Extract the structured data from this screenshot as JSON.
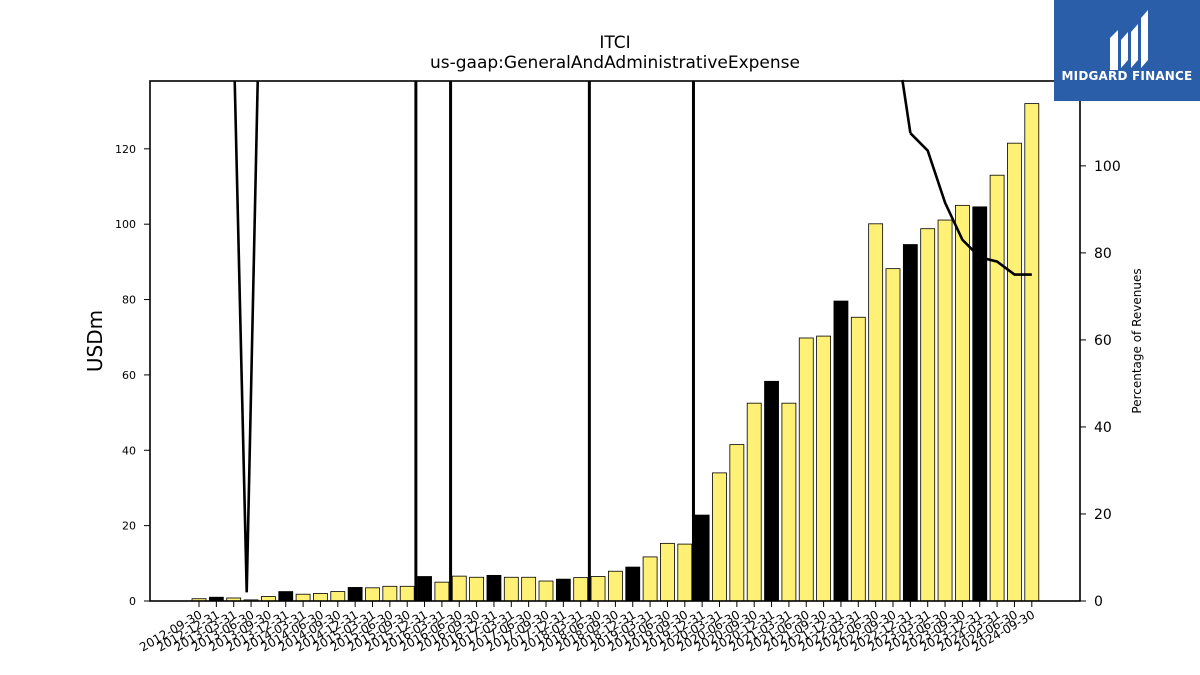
{
  "brand": {
    "name": "MIDGARD FINANCE",
    "color": "#2a5ea8"
  },
  "chart_data": {
    "type": "bar",
    "title": "ITCI",
    "subtitle": "us-gaap:GeneralAndAdministrativeExpense",
    "ylabel": "USDm",
    "y2label": "Percentage of Revenues",
    "ylim": [
      0,
      138
    ],
    "y2lim": [
      0,
      119.5
    ],
    "yticks": [
      0,
      20,
      40,
      60,
      80,
      100,
      120
    ],
    "y2ticks": [
      0,
      20,
      40,
      60,
      80,
      100
    ],
    "colors": {
      "quarter": "#fff176",
      "annual": "#000000",
      "line": "#000000"
    },
    "categories": [
      "2012-09-30",
      "2012-12-31",
      "2013-03-31",
      "2013-06-30",
      "2013-09-30",
      "2013-12-31",
      "2014-03-31",
      "2014-06-30",
      "2014-09-30",
      "2014-12-31",
      "2015-03-31",
      "2015-06-30",
      "2015-09-30",
      "2015-12-31",
      "2016-03-31",
      "2016-06-30",
      "2016-09-30",
      "2016-12-31",
      "2017-03-31",
      "2017-06-30",
      "2017-09-30",
      "2017-12-31",
      "2018-03-31",
      "2018-06-30",
      "2018-09-30",
      "2018-12-31",
      "2019-03-31",
      "2019-06-30",
      "2019-09-30",
      "2019-12-31",
      "2020-03-31",
      "2020-06-30",
      "2020-09-30",
      "2020-12-31",
      "2021-03-31",
      "2021-06-30",
      "2021-09-30",
      "2021-12-31",
      "2022-03-31",
      "2022-06-30",
      "2022-09-30",
      "2022-12-31",
      "2023-03-31",
      "2023-06-30",
      "2023-09-30",
      "2023-12-31",
      "2024-03-31",
      "2024-06-30",
      "2024-09-30"
    ],
    "values": [
      0.6,
      1.0,
      0.8,
      0.3,
      1.2,
      2.5,
      1.8,
      2.0,
      2.5,
      3.6,
      3.5,
      3.9,
      3.9,
      6.5,
      5.0,
      6.6,
      6.3,
      6.8,
      6.3,
      6.3,
      5.3,
      5.8,
      6.2,
      6.5,
      7.9,
      9.0,
      11.7,
      15.3,
      15.1,
      22.8,
      34.0,
      41.5,
      52.5,
      58.3,
      52.5,
      69.8,
      70.3,
      79.6,
      75.3,
      100.1,
      88.2,
      94.6,
      98.8,
      101.1,
      105.0,
      104.6,
      113.0,
      121.5,
      132.0
    ],
    "annual": [
      false,
      true,
      false,
      false,
      false,
      true,
      false,
      false,
      false,
      true,
      false,
      false,
      false,
      true,
      false,
      false,
      false,
      true,
      false,
      false,
      false,
      true,
      false,
      false,
      false,
      true,
      false,
      false,
      false,
      true,
      false,
      false,
      false,
      true,
      false,
      false,
      false,
      true,
      false,
      false,
      false,
      true,
      false,
      false,
      false,
      true,
      false,
      false,
      false
    ],
    "series": [
      {
        "values": [
          null,
          null,
          null,
          null,
          null,
          null,
          null,
          null,
          null,
          null,
          null,
          null,
          null,
          null,
          null,
          null,
          null,
          null,
          null,
          null,
          null,
          null,
          null,
          null,
          null,
          null,
          null,
          null,
          null,
          null,
          null,
          null,
          null,
          null,
          null,
          null,
          null,
          null,
          null,
          null,
          null,
          107.5,
          103.5,
          91.5,
          83.0,
          79.0,
          78.0,
          75.0,
          75.0
        ]
      }
    ],
    "spikes": [
      {
        "index": 2.75,
        "low": 2
      },
      {
        "index": 12.5,
        "low": 0
      },
      {
        "index": 14.5,
        "low": 0
      },
      {
        "index": 22.5,
        "low": 0
      },
      {
        "index": 28.5,
        "low": 0
      }
    ]
  }
}
